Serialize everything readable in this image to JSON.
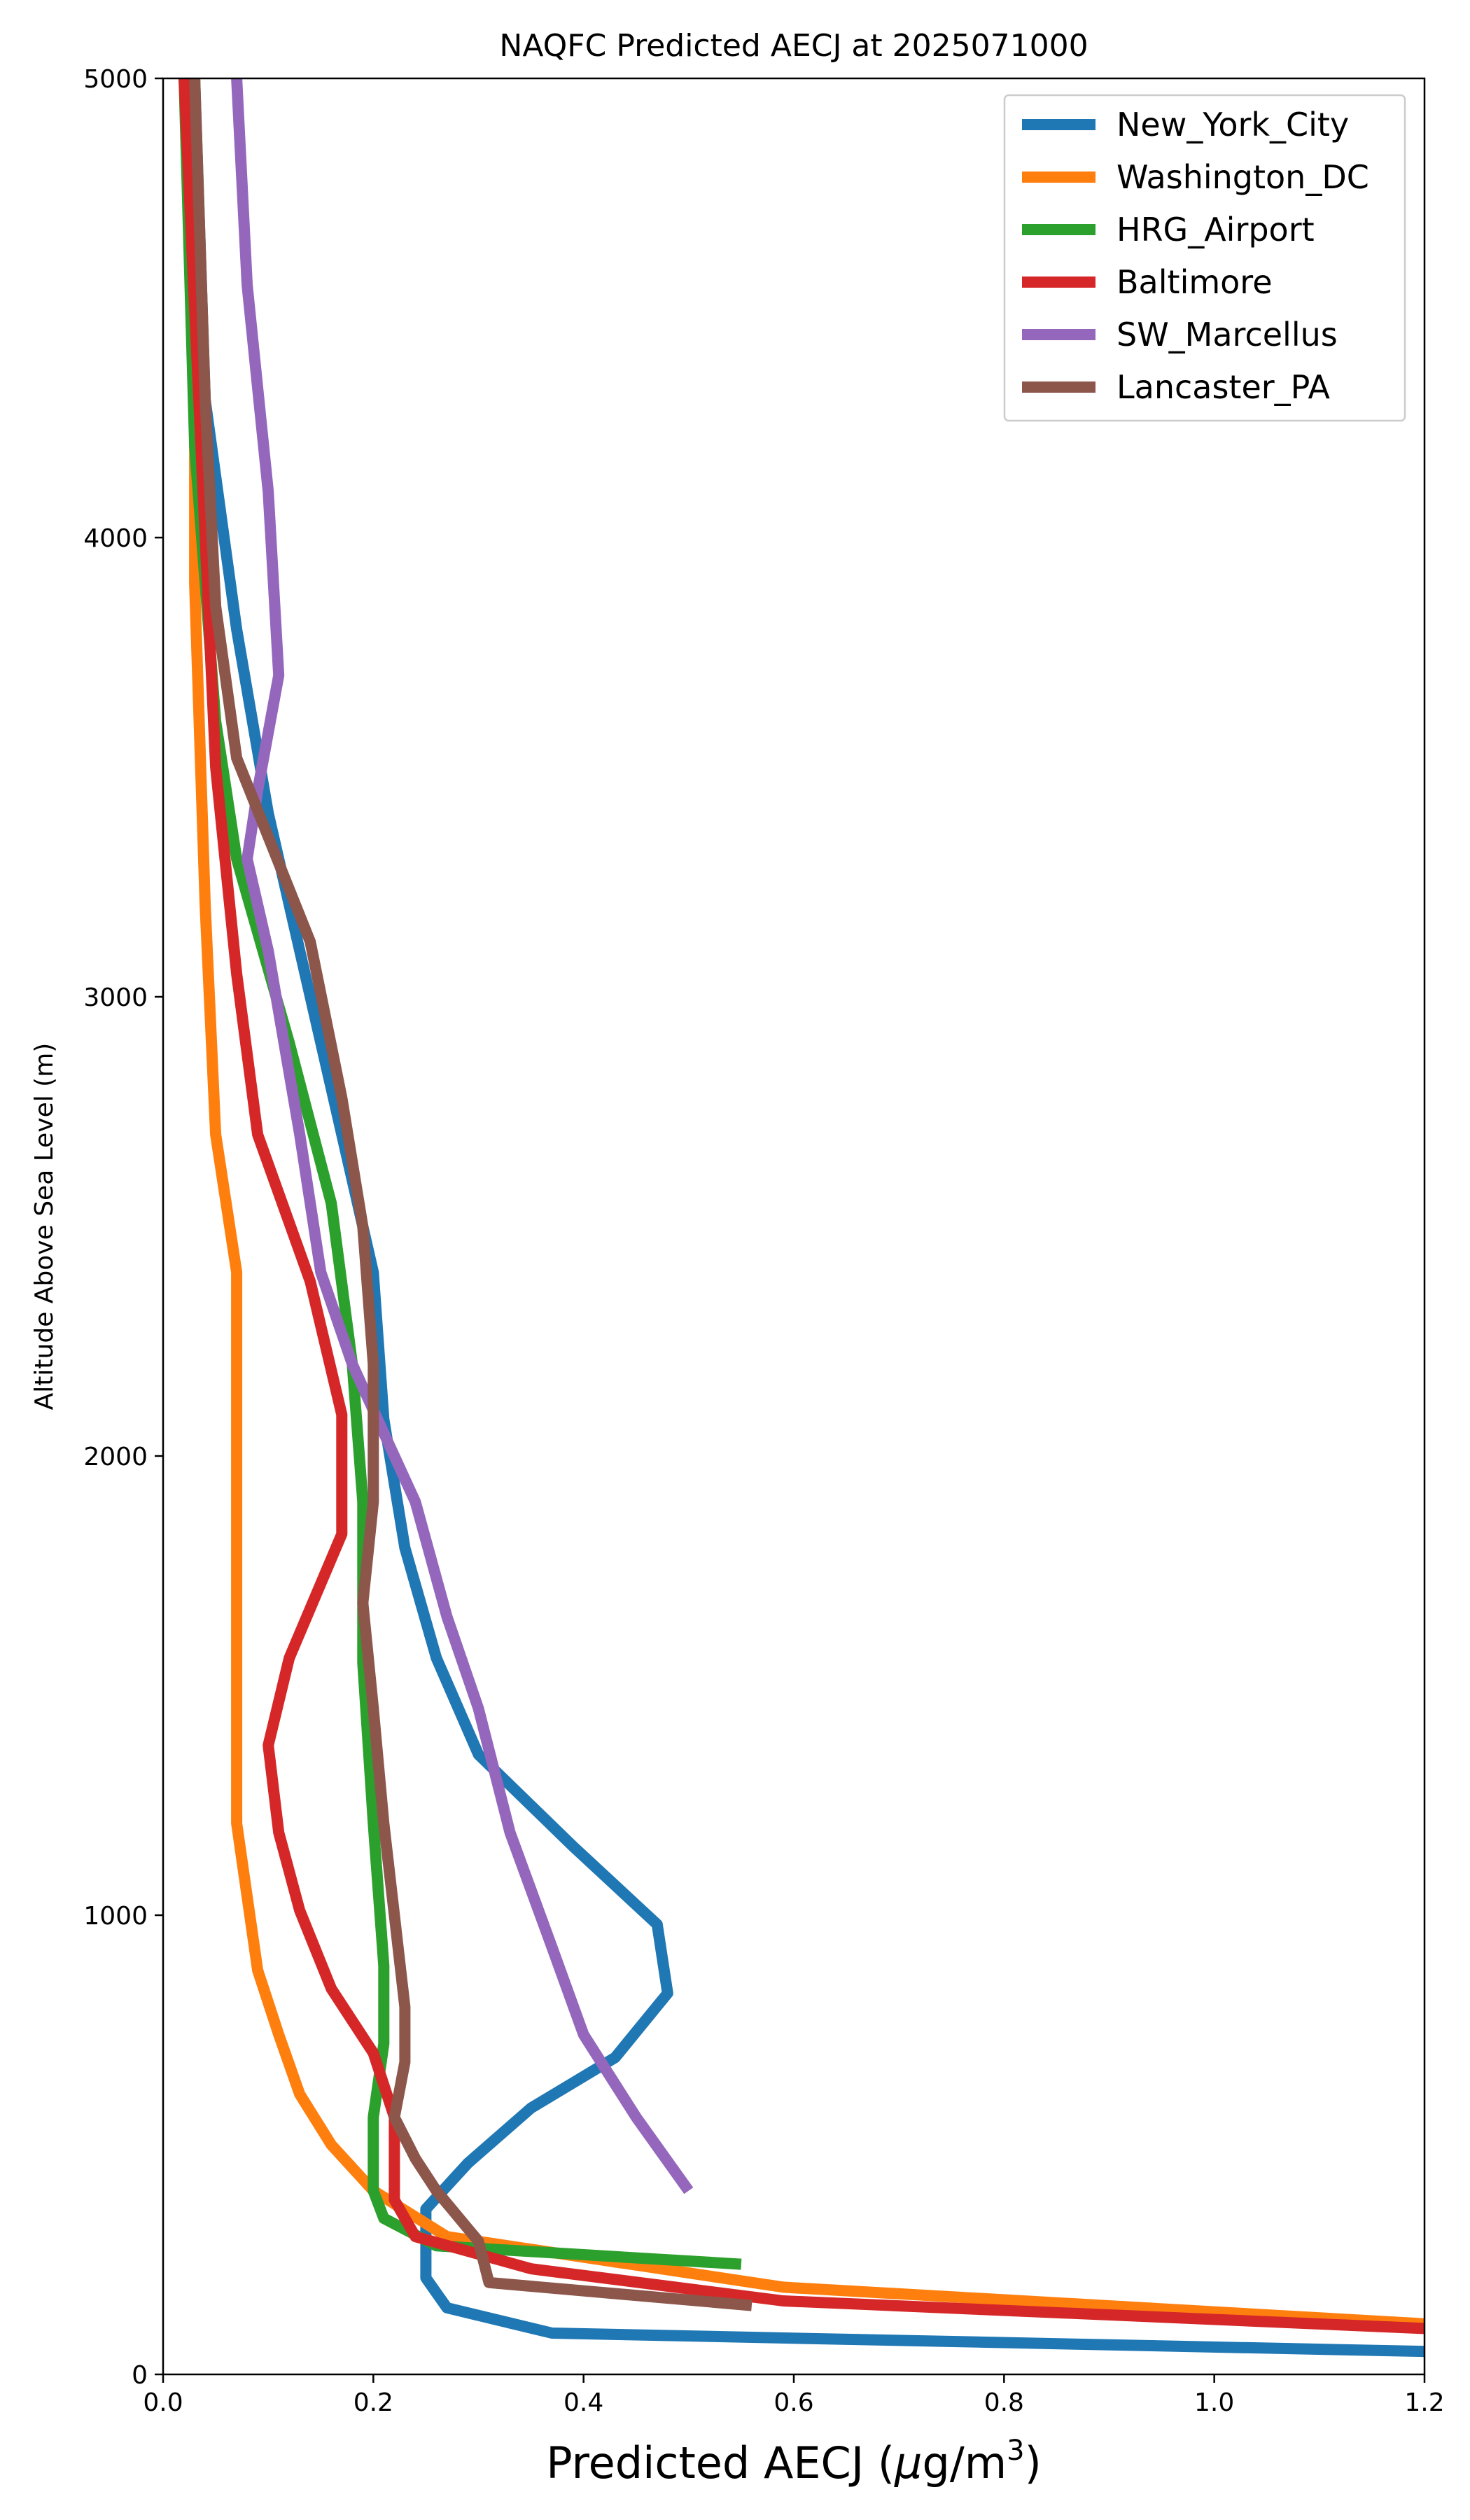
{
  "chart_data": {
    "type": "line",
    "title": "NAQFC Predicted AECJ at 2025071000",
    "xlabel": "Predicted AECJ (",
    "xlabel_mu": "μ",
    "xlabel_unit": "g/m",
    "xlabel_sup": "3",
    "xlabel_close": ")",
    "ylabel": "Altitude Above Sea Level (m)",
    "xlim": [
      0,
      1.2
    ],
    "ylim": [
      0,
      5000
    ],
    "xticks": [
      "0.0",
      "0.2",
      "0.4",
      "0.6",
      "0.8",
      "1.0",
      "1.2"
    ],
    "yticks": [
      "0",
      "1000",
      "2000",
      "3000",
      "4000",
      "5000"
    ],
    "grid": false,
    "legend_position": "top-right",
    "series": [
      {
        "name": "New_York_City",
        "color": "#1f77b4",
        "points": [
          [
            1.2,
            50
          ],
          [
            0.37,
            90
          ],
          [
            0.27,
            145
          ],
          [
            0.25,
            210
          ],
          [
            0.25,
            360
          ],
          [
            0.29,
            460
          ],
          [
            0.35,
            580
          ],
          [
            0.43,
            690
          ],
          [
            0.48,
            830
          ],
          [
            0.47,
            980
          ],
          [
            0.39,
            1150
          ],
          [
            0.3,
            1350
          ],
          [
            0.26,
            1560
          ],
          [
            0.23,
            1800
          ],
          [
            0.21,
            2080
          ],
          [
            0.2,
            2400
          ],
          [
            0.16,
            2800
          ],
          [
            0.1,
            3400
          ],
          [
            0.07,
            3800
          ],
          [
            0.04,
            4300
          ],
          [
            0.03,
            5000
          ]
        ]
      },
      {
        "name": "Washington_DC",
        "color": "#ff7f0e",
        "points": [
          [
            1.2,
            110
          ],
          [
            0.59,
            190
          ],
          [
            0.27,
            300
          ],
          [
            0.2,
            400
          ],
          [
            0.16,
            500
          ],
          [
            0.13,
            610
          ],
          [
            0.11,
            740
          ],
          [
            0.09,
            880
          ],
          [
            0.08,
            1040
          ],
          [
            0.07,
            1200
          ],
          [
            0.07,
            1600
          ],
          [
            0.07,
            2100
          ],
          [
            0.07,
            2400
          ],
          [
            0.05,
            2700
          ],
          [
            0.04,
            3200
          ],
          [
            0.03,
            3900
          ],
          [
            0.03,
            5000
          ]
        ]
      },
      {
        "name": "HRG_Airport",
        "color": "#2ca02c",
        "points": [
          [
            0.55,
            240
          ],
          [
            0.26,
            280
          ],
          [
            0.21,
            340
          ],
          [
            0.2,
            400
          ],
          [
            0.2,
            560
          ],
          [
            0.21,
            720
          ],
          [
            0.21,
            890
          ],
          [
            0.2,
            1200
          ],
          [
            0.19,
            1550
          ],
          [
            0.19,
            1900
          ],
          [
            0.18,
            2200
          ],
          [
            0.16,
            2550
          ],
          [
            0.12,
            2900
          ],
          [
            0.07,
            3300
          ],
          [
            0.05,
            3600
          ],
          [
            0.03,
            4200
          ],
          [
            0.02,
            5000
          ]
        ]
      },
      {
        "name": "Baltimore",
        "color": "#d62728",
        "points": [
          [
            1.2,
            100
          ],
          [
            0.59,
            160
          ],
          [
            0.35,
            230
          ],
          [
            0.24,
            300
          ],
          [
            0.22,
            380
          ],
          [
            0.22,
            560
          ],
          [
            0.2,
            700
          ],
          [
            0.16,
            840
          ],
          [
            0.13,
            1010
          ],
          [
            0.11,
            1180
          ],
          [
            0.1,
            1370
          ],
          [
            0.12,
            1560
          ],
          [
            0.17,
            1830
          ],
          [
            0.17,
            2090
          ],
          [
            0.14,
            2380
          ],
          [
            0.09,
            2700
          ],
          [
            0.07,
            3050
          ],
          [
            0.05,
            3500
          ],
          [
            0.04,
            4000
          ],
          [
            0.02,
            5000
          ]
        ]
      },
      {
        "name": "SW_Marcellus",
        "color": "#9467bd",
        "points": [
          [
            0.5,
            400
          ],
          [
            0.45,
            560
          ],
          [
            0.4,
            740
          ],
          [
            0.37,
            930
          ],
          [
            0.33,
            1180
          ],
          [
            0.3,
            1450
          ],
          [
            0.27,
            1650
          ],
          [
            0.24,
            1900
          ],
          [
            0.21,
            2050
          ],
          [
            0.18,
            2200
          ],
          [
            0.15,
            2400
          ],
          [
            0.13,
            2700
          ],
          [
            0.1,
            3100
          ],
          [
            0.08,
            3300
          ],
          [
            0.09,
            3450
          ],
          [
            0.11,
            3700
          ],
          [
            0.1,
            4100
          ],
          [
            0.08,
            4550
          ],
          [
            0.07,
            5000
          ]
        ]
      },
      {
        "name": "Lancaster_PA",
        "color": "#8c564b",
        "points": [
          [
            0.56,
            150
          ],
          [
            0.31,
            200
          ],
          [
            0.3,
            290
          ],
          [
            0.26,
            400
          ],
          [
            0.24,
            470
          ],
          [
            0.22,
            560
          ],
          [
            0.23,
            680
          ],
          [
            0.23,
            800
          ],
          [
            0.22,
            1000
          ],
          [
            0.21,
            1200
          ],
          [
            0.2,
            1450
          ],
          [
            0.19,
            1680
          ],
          [
            0.2,
            1900
          ],
          [
            0.2,
            2200
          ],
          [
            0.19,
            2500
          ],
          [
            0.17,
            2780
          ],
          [
            0.14,
            3120
          ],
          [
            0.07,
            3520
          ],
          [
            0.05,
            3850
          ],
          [
            0.04,
            4300
          ],
          [
            0.03,
            5000
          ]
        ]
      }
    ]
  }
}
